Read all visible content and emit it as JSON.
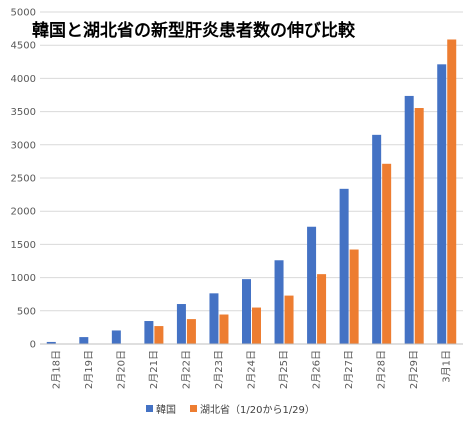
{
  "chart_data": {
    "type": "bar",
    "title": "韓国と湖北省の新型肝炎患者数の伸び比較",
    "categories": [
      "2月18日",
      "2月19日",
      "2月20日",
      "2月21日",
      "2月22日",
      "2月23日",
      "2月24日",
      "2月25日",
      "2月26日",
      "2月27日",
      "2月28日",
      "2月29日",
      "3月1日"
    ],
    "series": [
      {
        "name": "韓国",
        "color": "#4472C4",
        "values": [
          31,
          104,
          204,
          346,
          602,
          763,
          977,
          1261,
          1766,
          2337,
          3150,
          3736,
          4212
        ]
      },
      {
        "name": "湖北省（1/20から1/29）",
        "color": "#ED7D31",
        "values": [
          null,
          null,
          null,
          270,
          375,
          444,
          549,
          729,
          1052,
          1423,
          2714,
          3554,
          4586
        ]
      }
    ],
    "ylim": [
      0,
      5000
    ],
    "yticks": [
      "0",
      "500",
      "1000",
      "1500",
      "2000",
      "2500",
      "3000",
      "3500",
      "4000",
      "4500",
      "5000"
    ],
    "grid": true,
    "legend_position": "bottom"
  }
}
